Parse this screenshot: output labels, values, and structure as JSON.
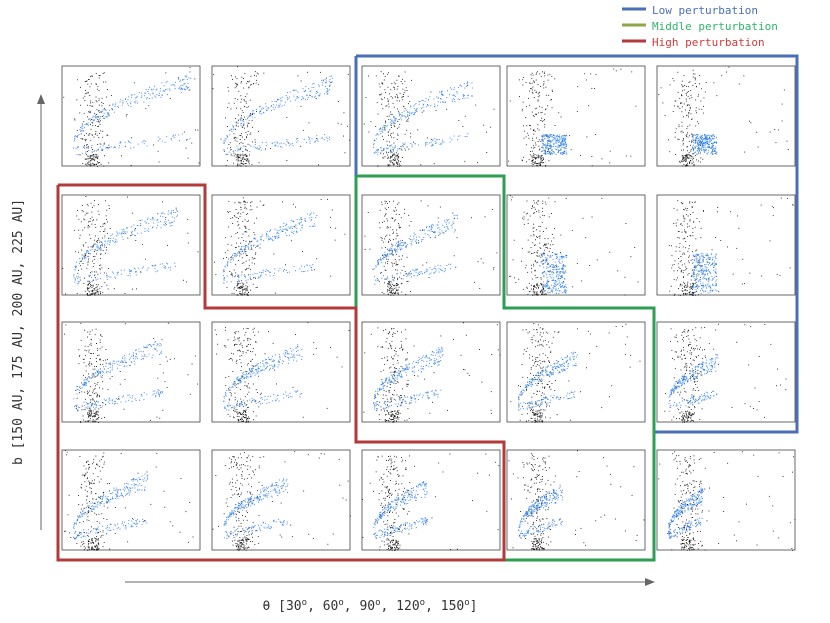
{
  "chart_data": {
    "type": "scatter",
    "grid": {
      "rows": 4,
      "cols": 5
    },
    "x_parameter": {
      "name": "θ",
      "values": [
        30,
        60,
        90,
        120,
        150
      ]
    },
    "y_parameter": {
      "name": "b",
      "values_AU": [
        150,
        175,
        200,
        225
      ]
    },
    "xlabel": {
      "prefix": "θ [30",
      "parts": [
        "o",
        ", 60",
        "o",
        ", 90",
        "o",
        ", 120",
        "o",
        ", 150",
        "o",
        "]"
      ]
    },
    "ylabel": "b [150 AU, 175 AU, 200 AU, 225 AU]",
    "legend": {
      "placement": "top-right",
      "items": [
        {
          "label": "Low perturbation",
          "color": "#4a6fb5",
          "text_color": "#4a6fb5"
        },
        {
          "label": "Middle perturbation",
          "color": "#8fa64a",
          "text_color": "#2fb56a"
        },
        {
          "label": "High perturbation",
          "color": "#b23a3a",
          "text_color": "#d23a3a"
        }
      ]
    },
    "regions": [
      {
        "name": "low",
        "color": "#4a6fb5",
        "cells": [
          [
            0,
            2
          ],
          [
            0,
            3
          ],
          [
            0,
            4
          ],
          [
            1,
            2
          ],
          [
            1,
            3
          ],
          [
            1,
            4
          ],
          [
            2,
            4
          ]
        ]
      },
      {
        "name": "middle",
        "color": "#2e9e55",
        "cells": [
          [
            1,
            2
          ],
          [
            2,
            2
          ],
          [
            2,
            3
          ],
          [
            3,
            3
          ]
        ]
      },
      {
        "name": "high",
        "color": "#b23a3a",
        "cells": [
          [
            1,
            0
          ],
          [
            2,
            0
          ],
          [
            2,
            1
          ],
          [
            3,
            0
          ],
          [
            3,
            1
          ],
          [
            3,
            2
          ]
        ]
      }
    ],
    "series_colors": {
      "particles": "#1a73e8",
      "background": "#111111"
    }
  }
}
